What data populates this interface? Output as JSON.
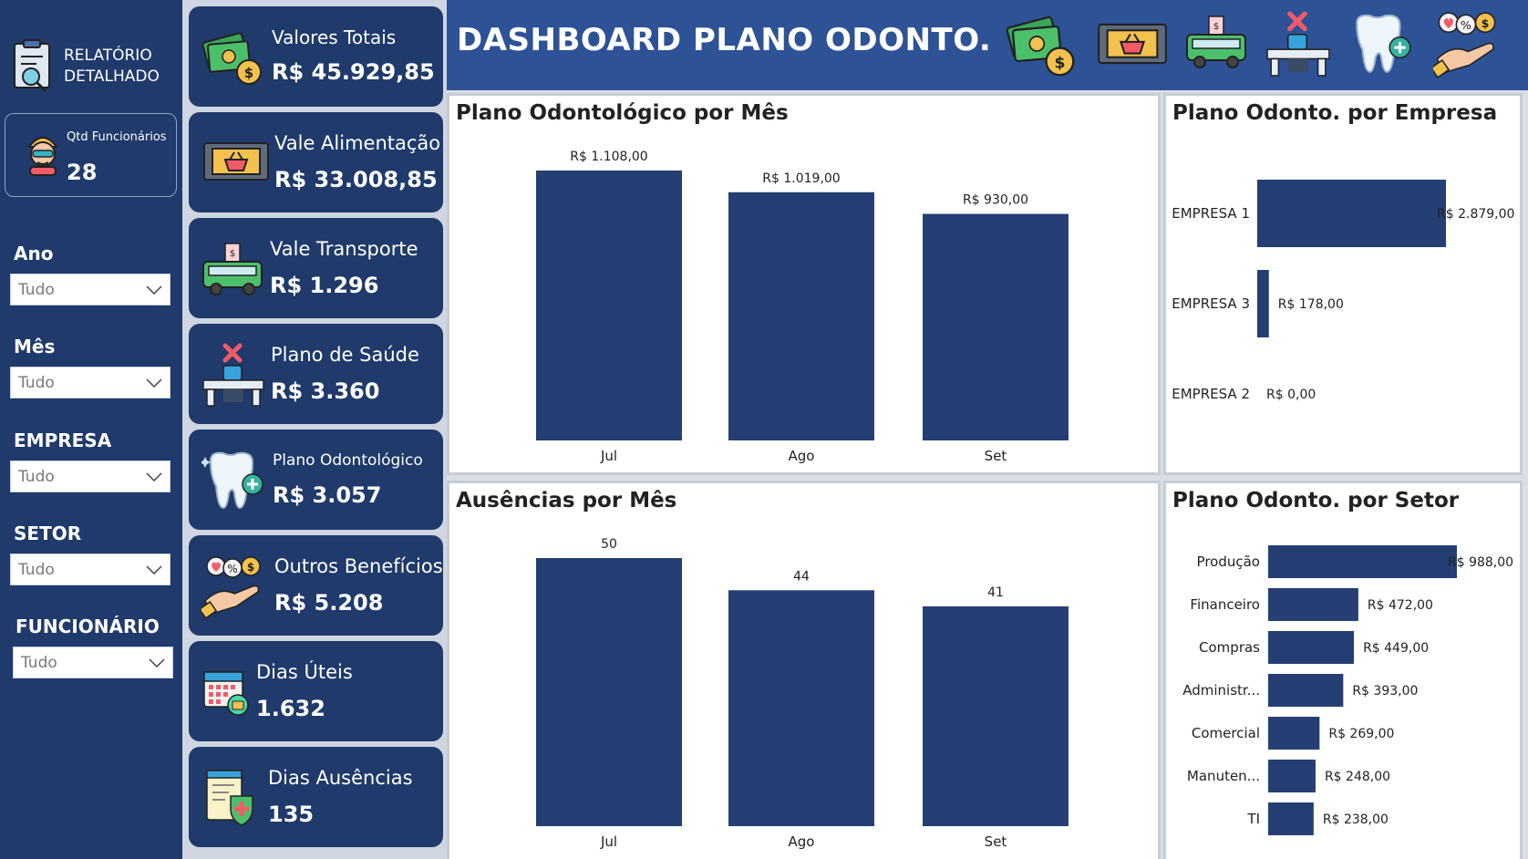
{
  "sidebar": {
    "report_link": "RELATÓRIO DETALHADO",
    "employee_count_label": "Qtd Funcionários",
    "employee_count_value": "28",
    "filters": [
      {
        "label": "Ano",
        "value": "Tudo"
      },
      {
        "label": "Mês",
        "value": "Tudo"
      },
      {
        "label": "EMPRESA",
        "value": "Tudo"
      },
      {
        "label": "SETOR",
        "value": "Tudo"
      },
      {
        "label": "FUNCIONÁRIO",
        "value": "Tudo"
      }
    ]
  },
  "kpis": [
    {
      "label": "Valores Totais",
      "value": "R$ 45.929,85",
      "icon": "money-stack-icon"
    },
    {
      "label": "Vale Alimentação",
      "value": "R$ 33.008,85",
      "icon": "food-voucher-icon"
    },
    {
      "label": "Vale Transporte",
      "value": "R$ 1.296",
      "icon": "bus-icon"
    },
    {
      "label": "Plano de Saúde",
      "value": "R$ 3.360",
      "icon": "health-desk-icon"
    },
    {
      "label": "Plano Odontológico",
      "value": "R$ 3.057",
      "icon": "tooth-icon"
    },
    {
      "label": "Outros Benefícios",
      "value": "R$ 5.208",
      "icon": "hand-benefits-icon"
    },
    {
      "label": "Dias Úteis",
      "value": "1.632",
      "icon": "calendar-icon"
    },
    {
      "label": "Dias Ausências",
      "value": "135",
      "icon": "clipboard-shield-icon"
    }
  ],
  "header": {
    "title": "DASHBOARD PLANO ODONTO.",
    "icons": [
      "money-stack-icon",
      "food-voucher-icon",
      "bus-icon",
      "health-desk-icon",
      "tooth-icon",
      "hand-benefits-icon"
    ]
  },
  "colors": {
    "bar": "#253f74",
    "sidebar": "#1f3a6b",
    "header": "#2d5296"
  },
  "chart_data": [
    {
      "type": "bar",
      "title": "Plano Odontológico por Mês",
      "categories": [
        "Jul",
        "Ago",
        "Set"
      ],
      "values": [
        1108,
        1019,
        930
      ],
      "labels": [
        "R$ 1.108,00",
        "R$ 1.019,00",
        "R$ 930,00"
      ],
      "ylim": [
        0,
        1108
      ]
    },
    {
      "type": "bar",
      "orientation": "horizontal",
      "title": "Plano Odonto. por Empresa",
      "categories": [
        "EMPRESA 1",
        "EMPRESA 3",
        "EMPRESA 2"
      ],
      "values": [
        2879,
        178,
        0
      ],
      "labels": [
        "R$ 2.879,00",
        "R$ 178,00",
        "R$ 0,00"
      ],
      "xlim": [
        0,
        2879
      ]
    },
    {
      "type": "bar",
      "title": "Ausências por Mês",
      "categories": [
        "Jul",
        "Ago",
        "Set"
      ],
      "values": [
        50,
        44,
        41
      ],
      "labels": [
        "50",
        "44",
        "41"
      ],
      "ylim": [
        0,
        50
      ]
    },
    {
      "type": "bar",
      "orientation": "horizontal",
      "title": "Plano Odonto. por Setor",
      "categories": [
        "Produção",
        "Financeiro",
        "Compras",
        "Administr...",
        "Comercial",
        "Manuten...",
        "TI"
      ],
      "values": [
        988,
        472,
        449,
        393,
        269,
        248,
        238
      ],
      "labels": [
        "R$ 988,00",
        "R$ 472,00",
        "R$ 449,00",
        "R$ 393,00",
        "R$ 269,00",
        "R$ 248,00",
        "R$ 238,00"
      ],
      "xlim": [
        0,
        988
      ]
    }
  ]
}
